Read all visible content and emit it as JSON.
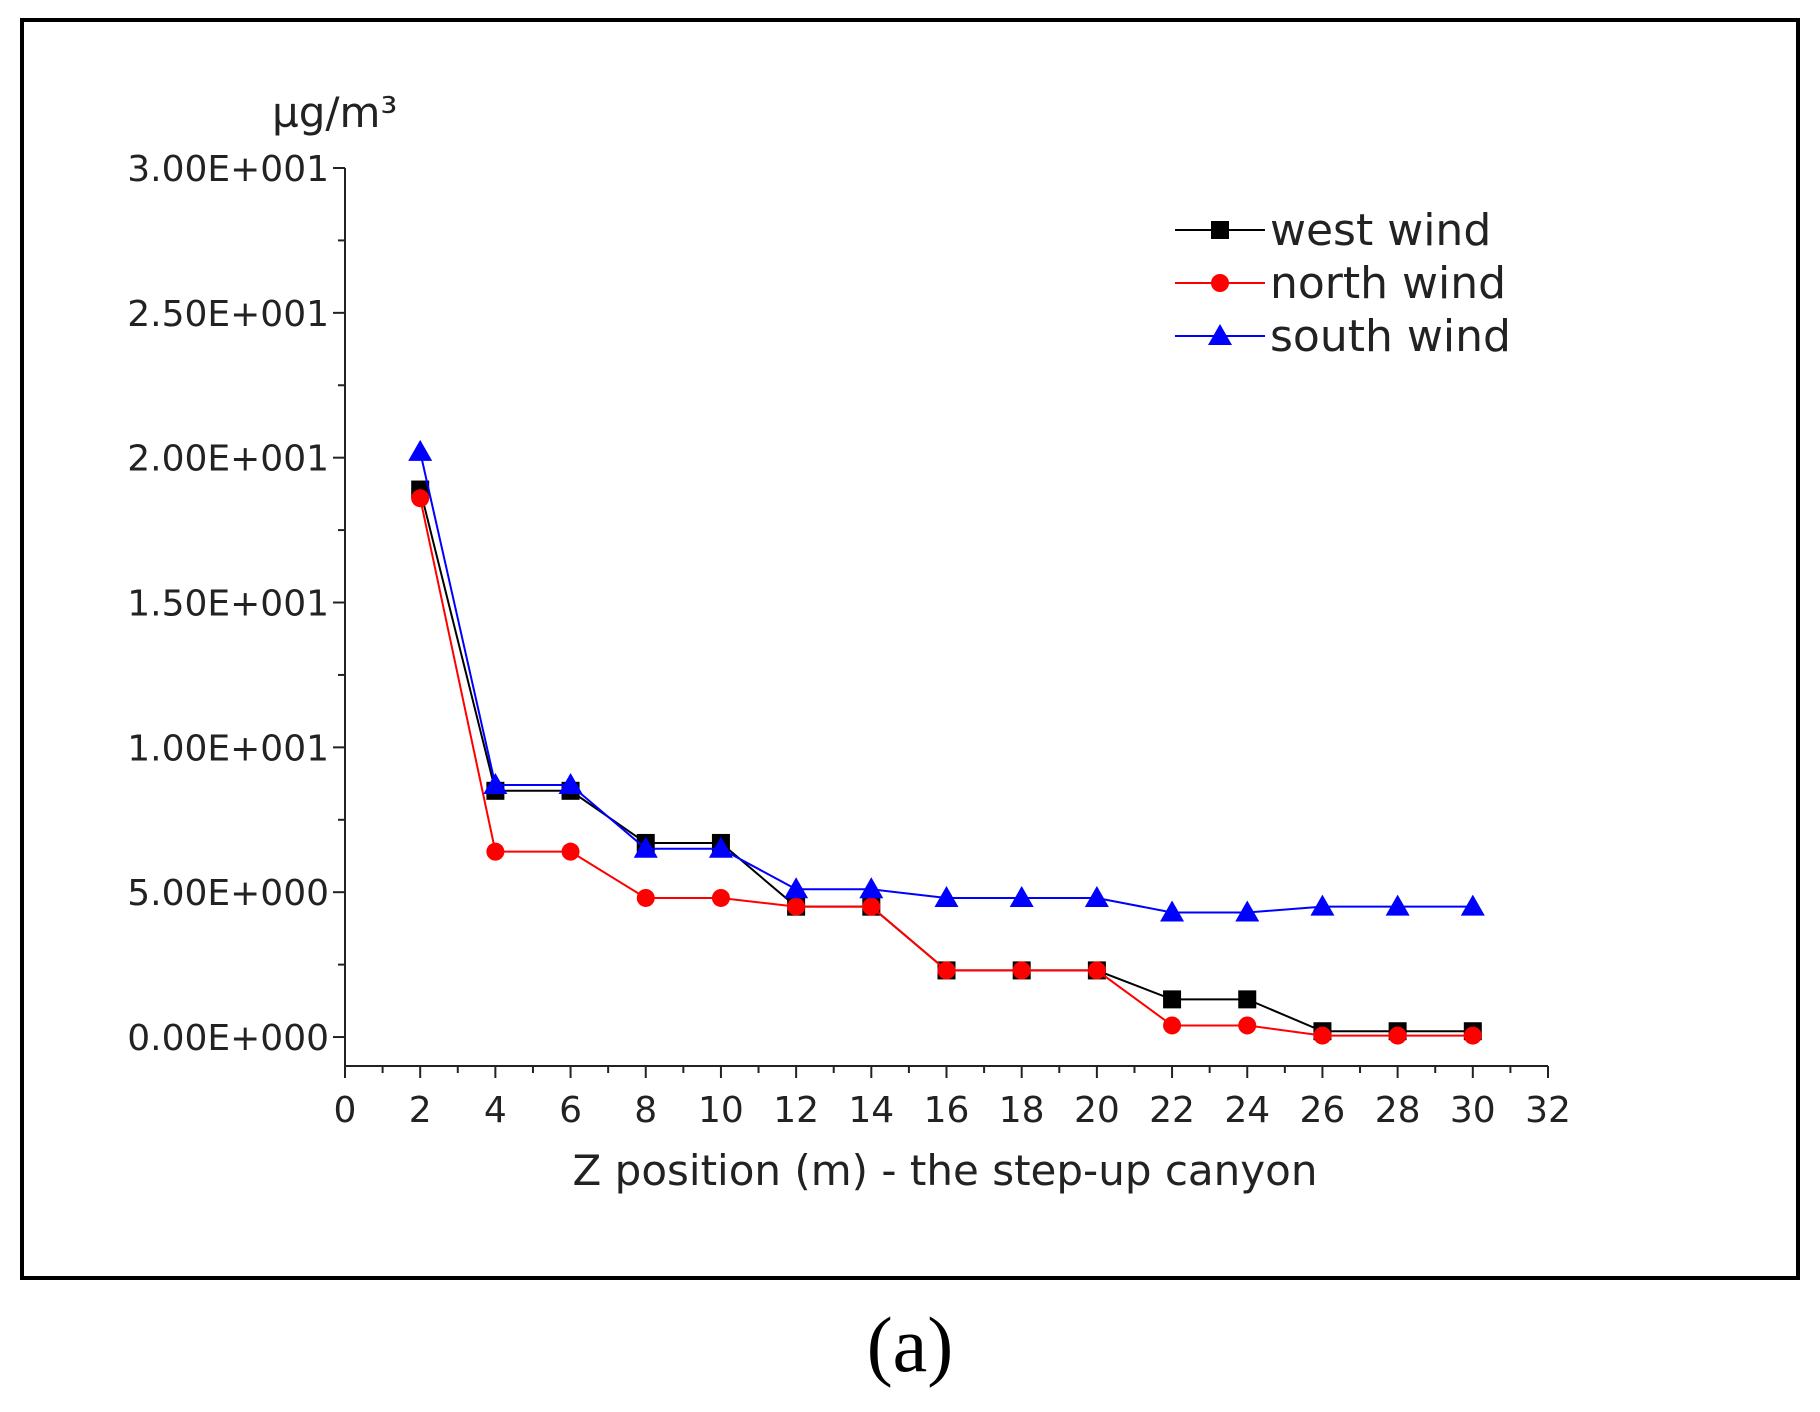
{
  "chart_data": {
    "type": "line",
    "title": "",
    "xlabel": "Z position (m) - the step-up canyon",
    "ylabel": "µg/m³",
    "xlim": [
      0,
      32
    ],
    "ylim": [
      -1,
      30
    ],
    "x_ticks": [
      "0",
      "2",
      "4",
      "6",
      "8",
      "10",
      "12",
      "14",
      "16",
      "18",
      "20",
      "22",
      "24",
      "26",
      "28",
      "30",
      "32"
    ],
    "y_ticks": [
      "0.00E+000",
      "5.00E+000",
      "1.00E+001",
      "1.50E+001",
      "2.00E+001",
      "2.50E+001",
      "3.00E+001"
    ],
    "y_tick_values": [
      0,
      5,
      10,
      15,
      20,
      25,
      30
    ],
    "x": [
      2,
      4,
      6,
      8,
      10,
      12,
      14,
      16,
      18,
      20,
      22,
      24,
      26,
      28,
      30
    ],
    "series": [
      {
        "name": "west wind",
        "color": "#000000",
        "marker": "square",
        "values": [
          18.9,
          8.5,
          8.5,
          6.7,
          6.7,
          4.5,
          4.5,
          2.3,
          2.3,
          2.3,
          1.3,
          1.3,
          0.2,
          0.2,
          0.2
        ]
      },
      {
        "name": "north wind",
        "color": "#ff0000",
        "marker": "circle",
        "values": [
          18.6,
          6.4,
          6.4,
          4.8,
          4.8,
          4.5,
          4.5,
          2.3,
          2.3,
          2.3,
          0.4,
          0.4,
          0.05,
          0.05,
          0.05
        ]
      },
      {
        "name": "south wind",
        "color": "#0000ff",
        "marker": "triangle",
        "values": [
          20.2,
          8.7,
          8.7,
          6.5,
          6.5,
          5.1,
          5.1,
          4.8,
          4.8,
          4.8,
          4.3,
          4.3,
          4.5,
          4.5,
          4.5
        ]
      }
    ],
    "legend_position": "top-right"
  },
  "caption": "(a)"
}
